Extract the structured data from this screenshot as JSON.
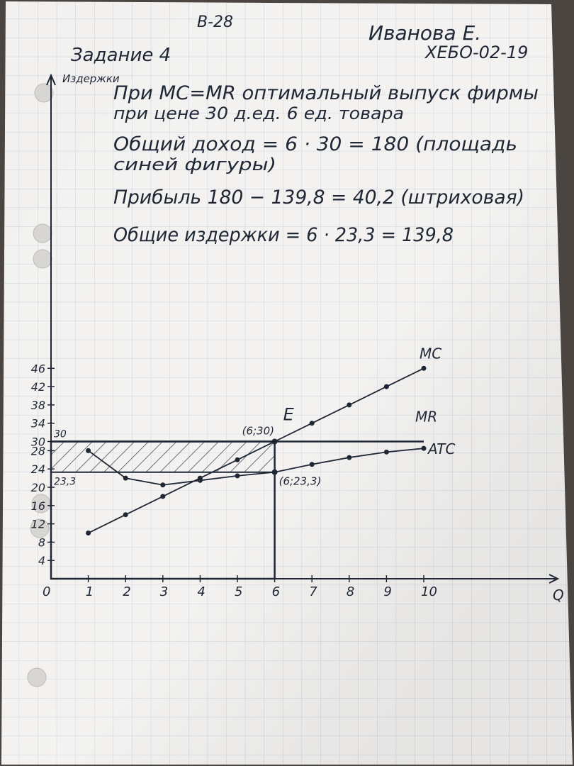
{
  "header": {
    "variant": "В-28",
    "author_name": "Иванова Е.",
    "group": "ХЕБО-02-19",
    "task_title": "Задание 4"
  },
  "notes": {
    "line1": "При MC=MR оптимальный выпуск фирмы",
    "line2": "при цене 30 д.ед. 6 ед. товара",
    "line3": "Общий доход = 6 · 30 = 180 (площадь",
    "line4": "синей фигуры)",
    "line5": "Прибыль 180 − 139,8 = 40,2 (штриховая)",
    "line6": "Общие издержки = 6 · 23,3 = 139,8"
  },
  "chart_data": {
    "type": "line",
    "ylabel": "Издержки",
    "xlabel": "Q",
    "origin_label": "0",
    "x_ticks": [
      "1",
      "2",
      "3",
      "4",
      "5",
      "6",
      "7",
      "8",
      "9",
      "10"
    ],
    "y_ticks": [
      "4",
      "8",
      "12",
      "16",
      "20",
      "24",
      "28",
      "30",
      "34",
      "38",
      "42",
      "46"
    ],
    "xlim": [
      0,
      10.5
    ],
    "ylim": [
      0,
      46
    ],
    "series": [
      {
        "name": "MC",
        "x": [
          1,
          2,
          3,
          4,
          5,
          6,
          7,
          8,
          9,
          10
        ],
        "y": [
          10,
          14,
          18,
          22,
          26,
          30,
          34,
          38,
          42,
          46
        ]
      },
      {
        "name": "MR",
        "x": [
          0,
          10
        ],
        "y": [
          30,
          30
        ]
      },
      {
        "name": "ATC",
        "x": [
          1,
          2,
          3,
          4,
          5,
          6,
          7,
          8,
          9,
          10
        ],
        "y": [
          28,
          22,
          20.5,
          21.5,
          22.5,
          23.3,
          25,
          26.5,
          27.7,
          28.5
        ]
      }
    ],
    "points": [
      {
        "label": "E",
        "x": 6,
        "y": 30,
        "text": "(6;30)"
      },
      {
        "label": "",
        "x": 6,
        "y": 23.3,
        "text": "(6;23,3)"
      }
    ],
    "axis_value_labels": [
      "30",
      "23,3"
    ],
    "profit_region": {
      "x": [
        0,
        6
      ],
      "y": [
        23.3,
        30
      ]
    },
    "colors": {
      "ink": "#1f2735",
      "grid": "#7a8fb0",
      "paper": "#f1f0ee"
    }
  }
}
